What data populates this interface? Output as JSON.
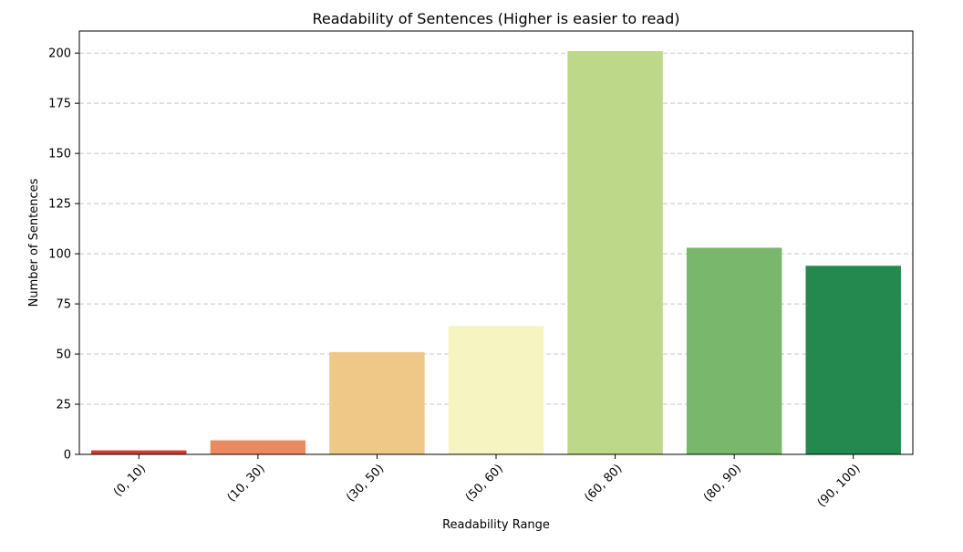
{
  "chart_data": {
    "type": "bar",
    "title": "Readability of Sentences (Higher is easier to read)",
    "xlabel": "Readability Range",
    "ylabel": "Number of Sentences",
    "categories": [
      "(0, 10)",
      "(10, 30)",
      "(30, 50)",
      "(50, 60)",
      "(60, 80)",
      "(80, 90)",
      "(90, 100)"
    ],
    "values": [
      2,
      7,
      51,
      64,
      201,
      103,
      94
    ],
    "colors": [
      "#d73027",
      "#f46d43",
      "#fdae61",
      "#fee08b",
      "#a6d96a",
      "#66bd63",
      "#1a9850"
    ],
    "bar_colors": [
      "#d13b32",
      "#ea8a60",
      "#efc888",
      "#f6f5c1",
      "#bdd888",
      "#79b76c",
      "#24894f"
    ],
    "ylim": [
      0,
      211
    ],
    "yticks": [
      0,
      25,
      50,
      75,
      100,
      125,
      150,
      175,
      200
    ],
    "grid": "y",
    "legend": "none"
  }
}
